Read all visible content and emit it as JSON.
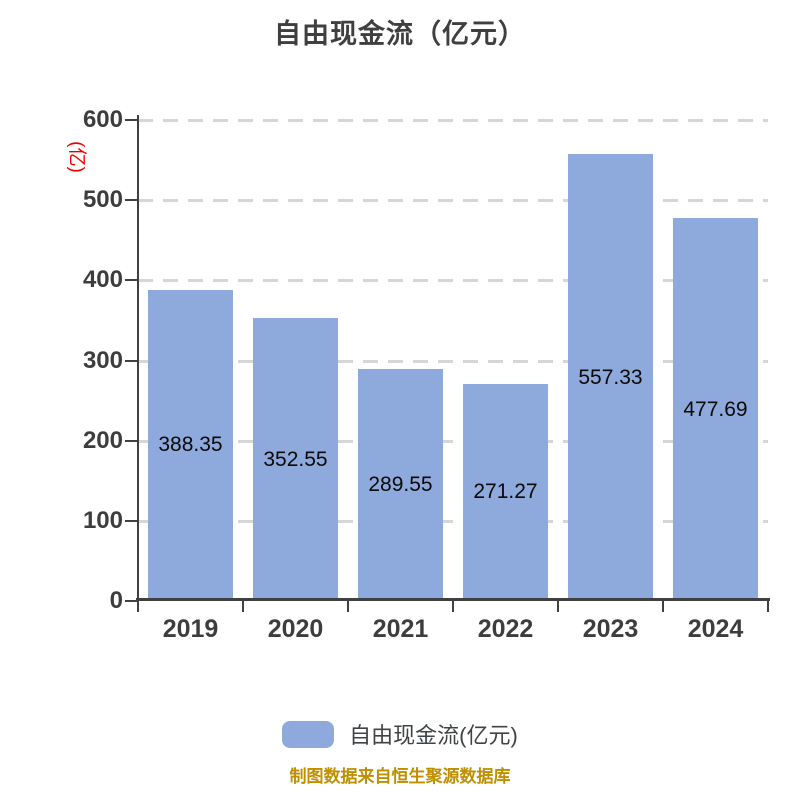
{
  "title": "自由现金流（亿元）",
  "y_axis_unit": "(亿)",
  "footer_note": "制图数据来自恒生聚源数据库",
  "legend": {
    "label": "自由现金流(亿元)",
    "swatch_color": "#8EA9DB"
  },
  "colors": {
    "bar": "#8EA9DB",
    "title_text": "#3F3F3F",
    "axis": "#404040",
    "gridline": "#D6D6D6",
    "value_label": "#0A0A0A",
    "y_unit_red": "#EE0000",
    "footer_gold": "#BF8F00"
  },
  "chart_data": {
    "type": "bar",
    "title": "自由现金流（亿元）",
    "series_name": "自由现金流(亿元)",
    "categories": [
      "2019",
      "2020",
      "2021",
      "2022",
      "2023",
      "2024"
    ],
    "values": [
      388.35,
      352.55,
      289.55,
      271.27,
      557.33,
      477.69
    ],
    "value_labels": [
      "388.35",
      "352.55",
      "289.55",
      "271.27",
      "557.33",
      "477.69"
    ],
    "xlabel": "",
    "ylabel": "(亿)",
    "ylim": [
      0,
      600
    ],
    "yticks": [
      0,
      100,
      200,
      300,
      400,
      500,
      600
    ],
    "grid": "horizontal-dashed",
    "legend_position": "bottom",
    "value_label_position": "inside-middle"
  }
}
